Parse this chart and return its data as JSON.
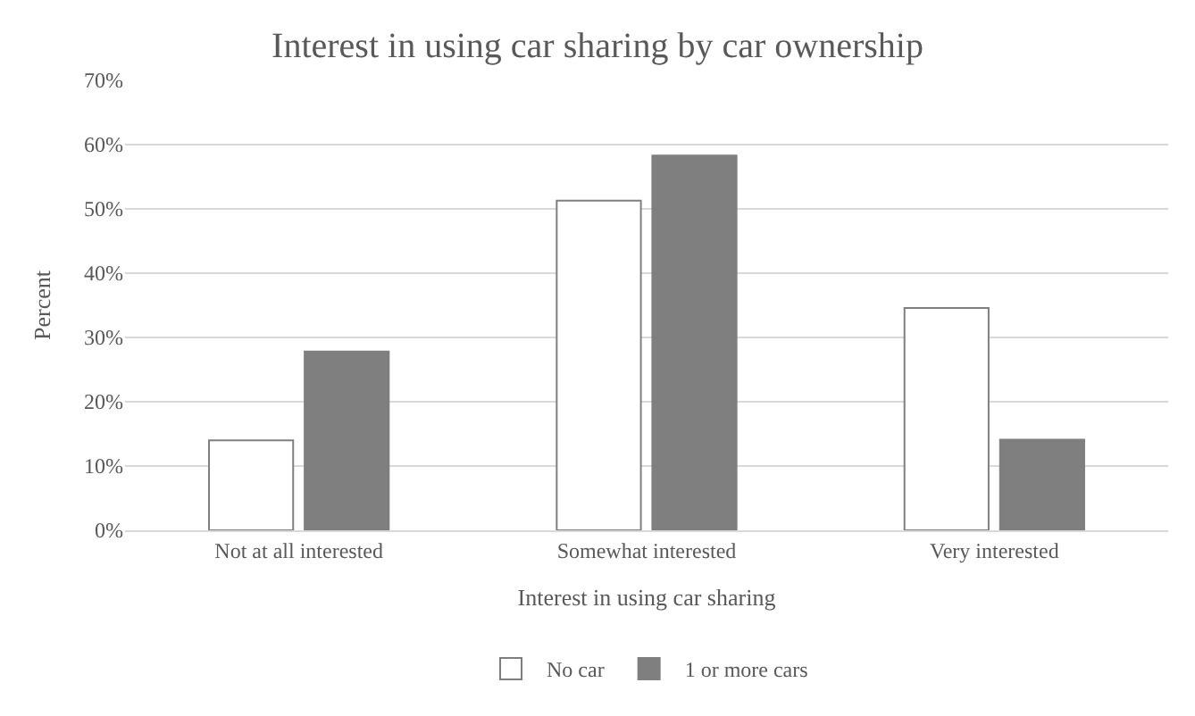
{
  "chart_data": {
    "type": "bar",
    "title": "Interest in using car sharing by car ownership",
    "xlabel": "Interest in using car sharing",
    "ylabel": "Percent",
    "categories": [
      "Not at all interested",
      "Somewhat interested",
      "Very interested"
    ],
    "series": [
      {
        "name": "No car",
        "color": "#ffffff",
        "values": [
          14.0,
          51.3,
          34.6
        ]
      },
      {
        "name": "1 or more cars",
        "color": "#7f7f7f",
        "values": [
          27.8,
          58.3,
          14.1
        ]
      }
    ],
    "ylim": [
      0,
      70
    ],
    "yticks": [
      {
        "value": 0,
        "label": "0%"
      },
      {
        "value": 10,
        "label": "10%"
      },
      {
        "value": 20,
        "label": "20%"
      },
      {
        "value": 30,
        "label": "30%"
      },
      {
        "value": 40,
        "label": "40%"
      },
      {
        "value": 50,
        "label": "50%"
      },
      {
        "value": 60,
        "label": "60%"
      },
      {
        "value": 70,
        "label": "70%"
      }
    ],
    "grid": "y",
    "legend": "bottom"
  }
}
